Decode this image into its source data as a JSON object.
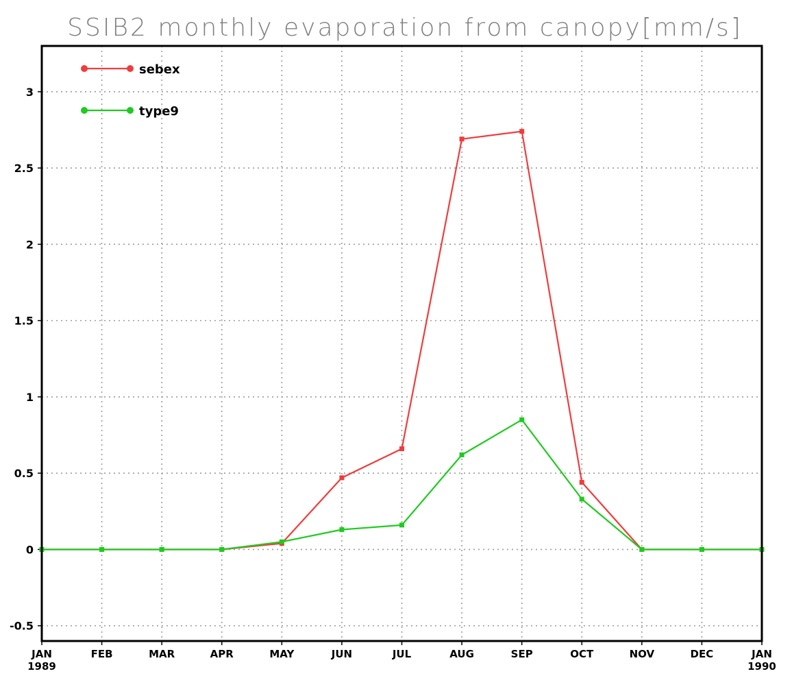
{
  "chart_data": {
    "type": "line",
    "title": "SSIB2 monthly evaporation from canopy[mm/s]",
    "xlabel": "",
    "ylabel": "",
    "ylim": [
      -0.6,
      3.3
    ],
    "grid": true,
    "legend_position": "top-left",
    "x_ticks": [
      {
        "label": "JAN",
        "sublabel": "1989"
      },
      {
        "label": "FEB",
        "sublabel": ""
      },
      {
        "label": "MAR",
        "sublabel": ""
      },
      {
        "label": "APR",
        "sublabel": ""
      },
      {
        "label": "MAY",
        "sublabel": ""
      },
      {
        "label": "JUN",
        "sublabel": ""
      },
      {
        "label": "JUL",
        "sublabel": ""
      },
      {
        "label": "AUG",
        "sublabel": ""
      },
      {
        "label": "SEP",
        "sublabel": ""
      },
      {
        "label": "OCT",
        "sublabel": ""
      },
      {
        "label": "NOV",
        "sublabel": ""
      },
      {
        "label": "DEC",
        "sublabel": ""
      },
      {
        "label": "JAN",
        "sublabel": "1990"
      }
    ],
    "y_ticks": [
      {
        "value": -0.5,
        "label": "-0.5"
      },
      {
        "value": 0,
        "label": "0"
      },
      {
        "value": 0.5,
        "label": "0.5"
      },
      {
        "value": 1,
        "label": "1"
      },
      {
        "value": 1.5,
        "label": "1.5"
      },
      {
        "value": 2,
        "label": "2"
      },
      {
        "value": 2.5,
        "label": "2.5"
      },
      {
        "value": 3,
        "label": "3"
      }
    ],
    "series": [
      {
        "name": "sebex",
        "color": "#f03c3c",
        "values": [
          0,
          0,
          0,
          0,
          0.04,
          0.47,
          0.66,
          2.69,
          2.74,
          0.44,
          0,
          0,
          0
        ]
      },
      {
        "name": "type9",
        "color": "#1ecb1e",
        "values": [
          0,
          0,
          0,
          0,
          0.05,
          0.13,
          0.16,
          0.62,
          0.85,
          0.33,
          0,
          0,
          0
        ]
      }
    ]
  }
}
